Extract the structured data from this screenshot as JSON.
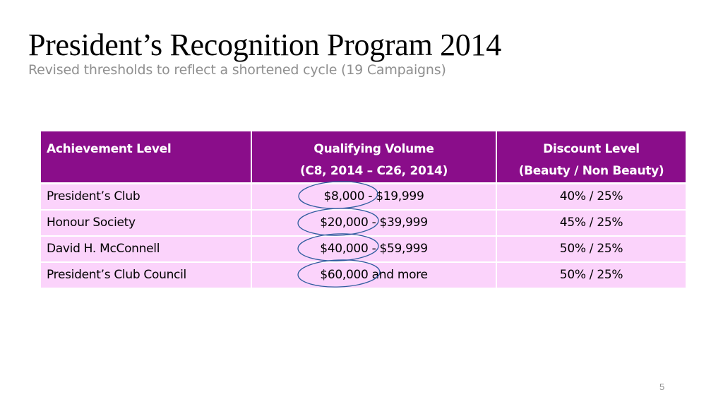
{
  "slide": {
    "title": "President’s Recognition Program 2014",
    "subtitle": "Revised thresholds to reflect a shortened cycle (19 Campaigns)",
    "page_number": "5"
  },
  "table": {
    "headers": [
      {
        "lines": [
          "Achievement Level"
        ]
      },
      {
        "lines": [
          "Qualifying Volume",
          "(C8, 2014 – C26, 2014)"
        ]
      },
      {
        "lines": [
          "Discount Level",
          "(Beauty / Non Beauty)"
        ]
      }
    ],
    "rows": [
      [
        "President’s Club",
        "$8,000 - $19,999",
        "40% / 25%"
      ],
      [
        "Honour Society",
        "$20,000 - $39,999",
        "45% / 25%"
      ],
      [
        "David H. McConnell",
        "$40,000 - $59,999",
        "50% / 25%"
      ],
      [
        "President’s Club Council",
        "$60,000 and more",
        "50% / 25%"
      ]
    ]
  },
  "colors": {
    "header_background": "#8a0d8a",
    "row_background": "#fbd3fb",
    "annotation_stroke": "#2f5d9e",
    "subtitle_text": "#8f8f8f"
  }
}
